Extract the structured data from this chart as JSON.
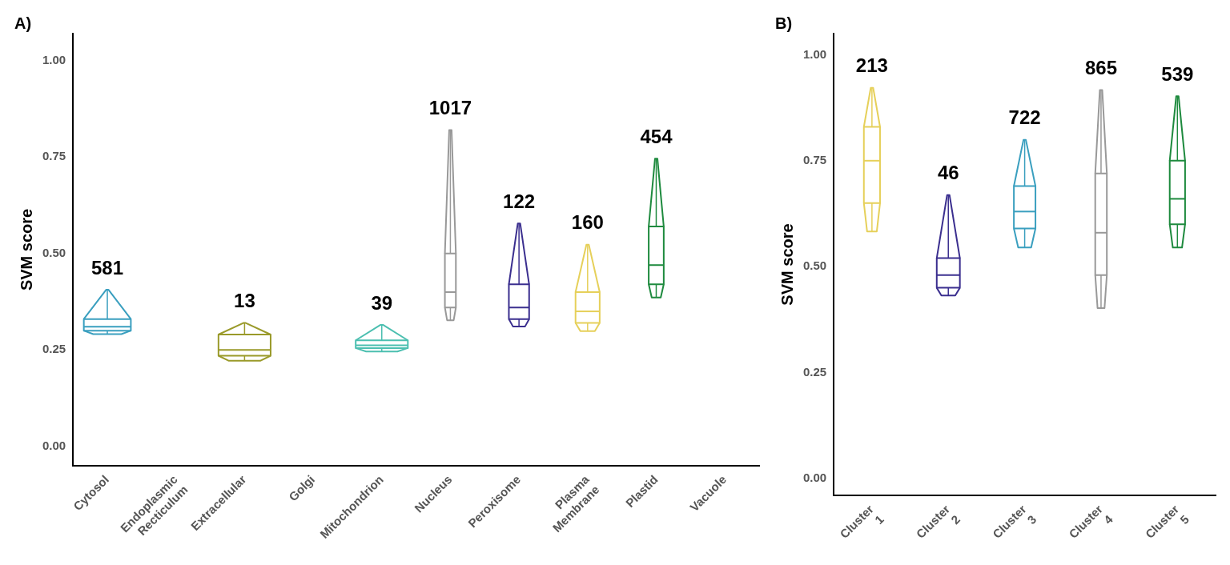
{
  "chart_data": [
    {
      "type": "box",
      "title": "A)",
      "ylabel": "SVM score",
      "grid": false,
      "legend": false,
      "categories": [
        "Cytosol",
        "Endoplasmic Recticulum",
        "Extracellular",
        "Golgi",
        "Mitochondrion",
        "Nucleus",
        "Peroxisome",
        "Plasma Membrane",
        "Plastid",
        "Vacuole"
      ],
      "colors": [
        "#3a9fbf",
        null,
        "#9a9a2a",
        null,
        "#4bbfb0",
        "#999999",
        "#3b2f8f",
        "#e6d05a",
        "#1e8a3e",
        null
      ],
      "boxes": [
        {
          "low": 0.291,
          "q1": 0.3,
          "median": 0.31,
          "q3": 0.33,
          "high": 0.406
        },
        null,
        {
          "low": 0.222,
          "q1": 0.235,
          "median": 0.25,
          "q3": 0.29,
          "high": 0.32
        },
        null,
        {
          "low": 0.246,
          "q1": 0.255,
          "median": 0.262,
          "q3": 0.275,
          "high": 0.315
        },
        {
          "low": 0.327,
          "q1": 0.36,
          "median": 0.4,
          "q3": 0.5,
          "high": 0.82
        },
        {
          "low": 0.311,
          "q1": 0.33,
          "median": 0.36,
          "q3": 0.42,
          "high": 0.578
        },
        {
          "low": 0.299,
          "q1": 0.32,
          "median": 0.35,
          "q3": 0.4,
          "high": 0.523
        },
        {
          "low": 0.386,
          "q1": 0.42,
          "median": 0.47,
          "q3": 0.57,
          "high": 0.746
        },
        null
      ],
      "ylim": [
        -0.05,
        1.07
      ],
      "yticks": [
        {
          "value": 0,
          "label": "0.00"
        },
        {
          "value": 0.25,
          "label": "0.25"
        },
        {
          "value": 0.5,
          "label": "0.50"
        },
        {
          "value": 0.75,
          "label": "0.75"
        },
        {
          "value": 1,
          "label": "1.00"
        }
      ],
      "annotations": [
        "581",
        "13",
        "39",
        "1017",
        "122",
        "160",
        "454"
      ]
    },
    {
      "type": "box",
      "title": "B)",
      "ylabel": "SVM score",
      "grid": false,
      "legend": false,
      "categories": [
        "Cluster 1",
        "Cluster 2",
        "Cluster 3",
        "Cluster 4",
        "Cluster 5"
      ],
      "colors": [
        "#e6d05a",
        "#3b2f8f",
        "#3a9fbf",
        "#999999",
        "#1e8a3e"
      ],
      "boxes": [
        {
          "low": 0.583,
          "q1": 0.65,
          "median": 0.75,
          "q3": 0.83,
          "high": 0.922
        },
        {
          "low": 0.432,
          "q1": 0.45,
          "median": 0.48,
          "q3": 0.52,
          "high": 0.669
        },
        {
          "low": 0.545,
          "q1": 0.59,
          "median": 0.63,
          "q3": 0.69,
          "high": 0.799
        },
        {
          "low": 0.402,
          "q1": 0.48,
          "median": 0.58,
          "q3": 0.72,
          "high": 0.917
        },
        {
          "low": 0.545,
          "q1": 0.6,
          "median": 0.66,
          "q3": 0.75,
          "high": 0.902
        }
      ],
      "ylim": [
        -0.04,
        1.05
      ],
      "yticks": [
        {
          "value": 0,
          "label": "0.00"
        },
        {
          "value": 0.25,
          "label": "0.25"
        },
        {
          "value": 0.5,
          "label": "0.50"
        },
        {
          "value": 0.75,
          "label": "0.75"
        },
        {
          "value": 1,
          "label": "1.00"
        }
      ],
      "annotations": [
        "213",
        "46",
        "722",
        "865",
        "539"
      ]
    }
  ]
}
